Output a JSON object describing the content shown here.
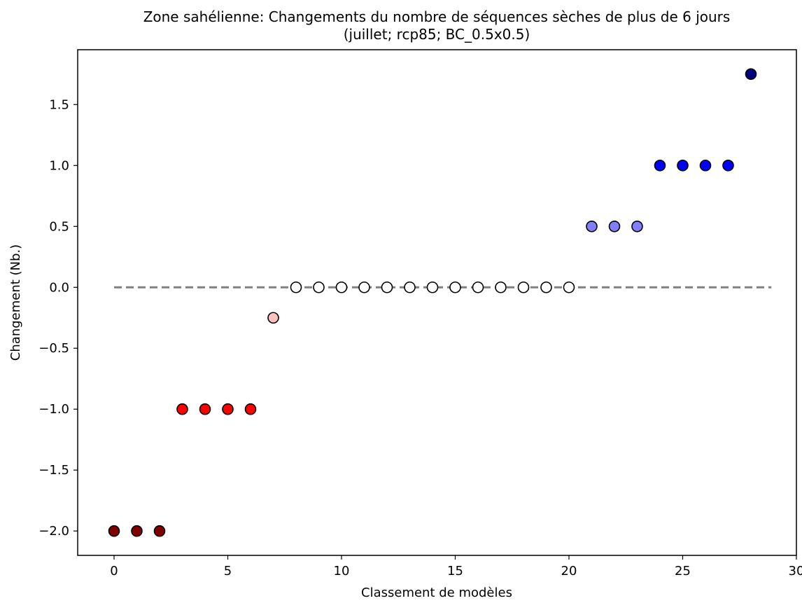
{
  "chart_data": {
    "type": "scatter",
    "title": "Zone sahélienne: Changements du nombre de séquences sèches de plus de 6 jours",
    "subtitle": "(juillet; rcp85; BC_0.5x0.5)",
    "xlabel": "Classement de modèles",
    "ylabel": "Changement (Nb.)",
    "xlim": [
      -1.6,
      30
    ],
    "ylim": [
      -2.2,
      1.95
    ],
    "xticks": [
      0,
      5,
      10,
      15,
      20,
      25,
      30
    ],
    "xtick_labels": [
      "0",
      "5",
      "10",
      "15",
      "20",
      "25",
      "30"
    ],
    "yticks": [
      -2.0,
      -1.5,
      -1.0,
      -0.5,
      0.0,
      0.5,
      1.0,
      1.5
    ],
    "ytick_labels": [
      "−2.0",
      "−1.5",
      "−1.0",
      "−0.5",
      "0.0",
      "0.5",
      "1.0",
      "1.5"
    ],
    "grid": false,
    "reference_line": {
      "y": 0.0,
      "x_start": 0,
      "x_end": 28.9,
      "style": "dashed",
      "color": "#808080"
    },
    "points": [
      {
        "x": 0,
        "y": -2.0,
        "color": "#800000"
      },
      {
        "x": 1,
        "y": -2.0,
        "color": "#800000"
      },
      {
        "x": 2,
        "y": -2.0,
        "color": "#800000"
      },
      {
        "x": 3,
        "y": -1.0,
        "color": "#ff0000"
      },
      {
        "x": 4,
        "y": -1.0,
        "color": "#ff0000"
      },
      {
        "x": 5,
        "y": -1.0,
        "color": "#ff0000"
      },
      {
        "x": 6,
        "y": -1.0,
        "color": "#ff0000"
      },
      {
        "x": 7,
        "y": -0.25,
        "color": "#ffc0c0"
      },
      {
        "x": 8,
        "y": 0.0,
        "color": "#ffffff"
      },
      {
        "x": 9,
        "y": 0.0,
        "color": "#ffffff"
      },
      {
        "x": 10,
        "y": 0.0,
        "color": "#ffffff"
      },
      {
        "x": 11,
        "y": 0.0,
        "color": "#ffffff"
      },
      {
        "x": 12,
        "y": 0.0,
        "color": "#ffffff"
      },
      {
        "x": 13,
        "y": 0.0,
        "color": "#ffffff"
      },
      {
        "x": 14,
        "y": 0.0,
        "color": "#ffffff"
      },
      {
        "x": 15,
        "y": 0.0,
        "color": "#ffffff"
      },
      {
        "x": 16,
        "y": 0.0,
        "color": "#ffffff"
      },
      {
        "x": 17,
        "y": 0.0,
        "color": "#ffffff"
      },
      {
        "x": 18,
        "y": 0.0,
        "color": "#ffffff"
      },
      {
        "x": 19,
        "y": 0.0,
        "color": "#ffffff"
      },
      {
        "x": 20,
        "y": 0.0,
        "color": "#ffffff"
      },
      {
        "x": 21,
        "y": 0.5,
        "color": "#8080ff"
      },
      {
        "x": 22,
        "y": 0.5,
        "color": "#8080ff"
      },
      {
        "x": 23,
        "y": 0.5,
        "color": "#8080ff"
      },
      {
        "x": 24,
        "y": 1.0,
        "color": "#0000ff"
      },
      {
        "x": 25,
        "y": 1.0,
        "color": "#0000ff"
      },
      {
        "x": 26,
        "y": 1.0,
        "color": "#0000ff"
      },
      {
        "x": 27,
        "y": 1.0,
        "color": "#0000ff"
      },
      {
        "x": 28,
        "y": 1.75,
        "color": "#000080"
      }
    ]
  }
}
